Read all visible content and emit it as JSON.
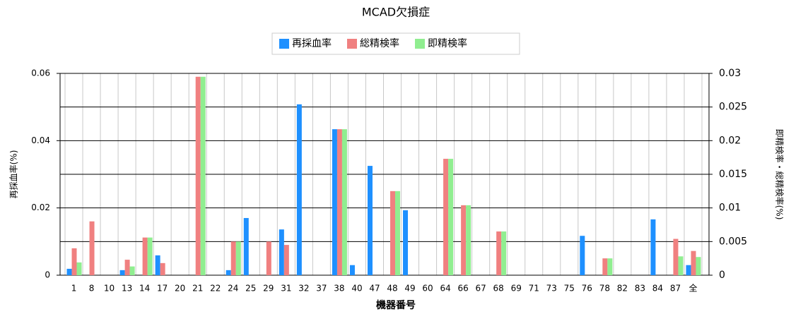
{
  "chart_data": {
    "type": "bar",
    "title": "MCAD欠損症",
    "x_label": "機器番号",
    "y_label": "再採血率(%)",
    "y2_label": "即精検率・総精検率(%)",
    "categories": [
      "1",
      "8",
      "10",
      "13",
      "14",
      "17",
      "20",
      "21",
      "22",
      "24",
      "25",
      "29",
      "31",
      "32",
      "37",
      "38",
      "40",
      "47",
      "48",
      "49",
      "60",
      "64",
      "66",
      "67",
      "68",
      "69",
      "71",
      "73",
      "75",
      "76",
      "78",
      "82",
      "83",
      "84",
      "87",
      "全"
    ],
    "series": [
      {
        "name": "再採血率",
        "color": "#1e90ff",
        "axis": "y",
        "values": [
          0.0019,
          0,
          0,
          0.0015,
          0,
          0.0059,
          0,
          0,
          0,
          0.0015,
          0.017,
          0,
          0.0136,
          0.0508,
          0,
          0.0434,
          0.003,
          0.0325,
          0,
          0.0193,
          0,
          0,
          0,
          0,
          0,
          0,
          0,
          0,
          0,
          0.0117,
          0,
          0,
          0,
          0.0166,
          0,
          0.003
        ]
      },
      {
        "name": "総精検率",
        "color": "#f08080",
        "axis": "y2",
        "values": [
          0.004,
          0.008,
          0,
          0.0023,
          0.0056,
          0.0018,
          0,
          0.0295,
          0,
          0.005,
          0,
          0.005,
          0.0045,
          0,
          0,
          0.0217,
          0,
          0,
          0.0125,
          0,
          0,
          0.0173,
          0.0104,
          0,
          0.0065,
          0,
          0,
          0,
          0,
          0,
          0.0025,
          0,
          0,
          0,
          0.0054,
          0.0036
        ]
      },
      {
        "name": "即精検率",
        "color": "#90ee90",
        "axis": "y2",
        "values": [
          0.0019,
          0,
          0,
          0.0013,
          0.0056,
          0,
          0,
          0.0295,
          0,
          0.005,
          0,
          0,
          0,
          0,
          0,
          0.0217,
          0,
          0,
          0.0125,
          0,
          0,
          0.0173,
          0.0104,
          0,
          0.0065,
          0,
          0,
          0,
          0,
          0,
          0.0025,
          0,
          0,
          0,
          0.0028,
          0.0027
        ]
      }
    ],
    "ylim": [
      0,
      0.06
    ],
    "yticks": [
      0,
      0.02,
      0.04,
      0.06
    ],
    "y2lim": [
      0,
      0.03
    ],
    "y2ticks": [
      0,
      0.005,
      0.01,
      0.015,
      0.02,
      0.025,
      0.03
    ],
    "grid": true
  }
}
